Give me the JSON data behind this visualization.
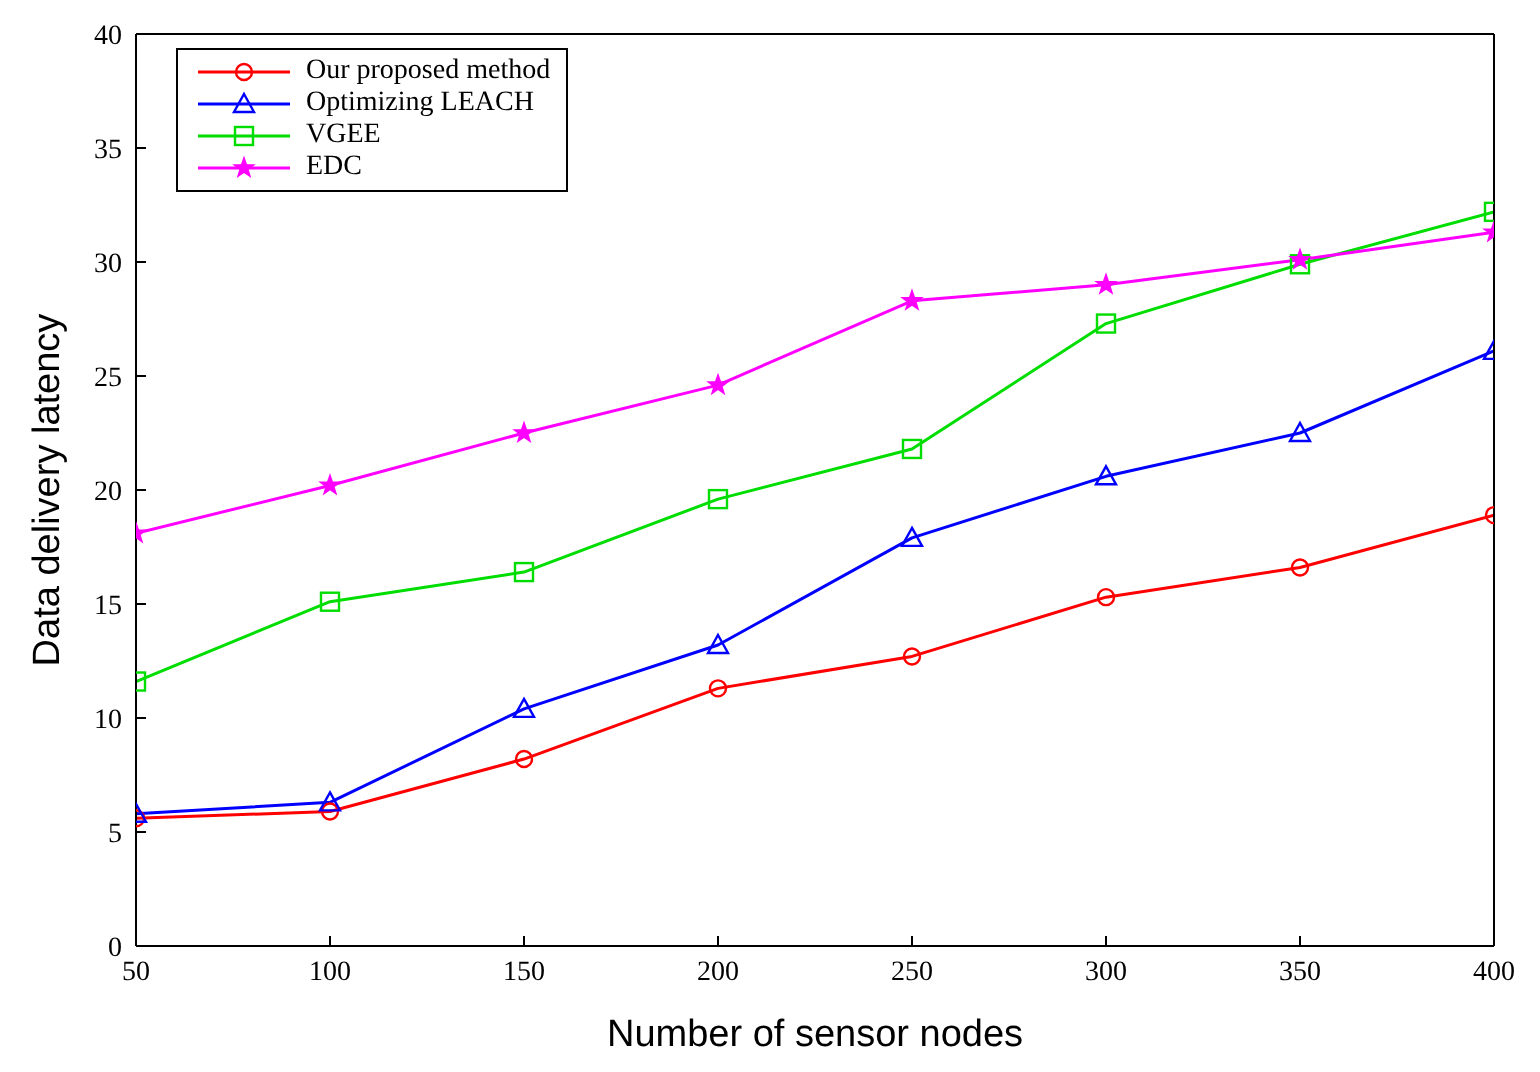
{
  "chart_data": {
    "type": "line",
    "xlabel": "Number of sensor nodes",
    "ylabel": "Data delivery latency",
    "x": [
      50,
      100,
      150,
      200,
      250,
      300,
      350,
      400
    ],
    "xlim": [
      50,
      400
    ],
    "xticks": [
      50,
      100,
      150,
      200,
      250,
      300,
      350,
      400
    ],
    "ylim": [
      0,
      40
    ],
    "yticks": [
      0,
      5,
      10,
      15,
      20,
      25,
      30,
      35,
      40
    ],
    "grid": false,
    "legend": "top left",
    "line_style": "solid",
    "series": [
      {
        "name": "Our proposed method",
        "color": "#ff0000",
        "marker": "circle",
        "values": [
          5.6,
          5.9,
          8.2,
          11.3,
          12.7,
          15.3,
          16.6,
          18.9
        ]
      },
      {
        "name": "Optimizing LEACH",
        "color": "#0000ff",
        "marker": "triangle",
        "values": [
          5.8,
          6.3,
          10.4,
          13.2,
          17.9,
          20.6,
          22.5,
          26.1
        ]
      },
      {
        "name": "VGEE",
        "color": "#00dd00",
        "marker": "square",
        "values": [
          11.6,
          15.1,
          16.4,
          19.6,
          21.8,
          27.3,
          29.9,
          32.2
        ]
      },
      {
        "name": "EDC",
        "color": "#ff00ff",
        "marker": "star",
        "values": [
          18.1,
          20.2,
          22.5,
          24.6,
          28.3,
          29.0,
          30.1,
          31.3
        ]
      }
    ]
  }
}
